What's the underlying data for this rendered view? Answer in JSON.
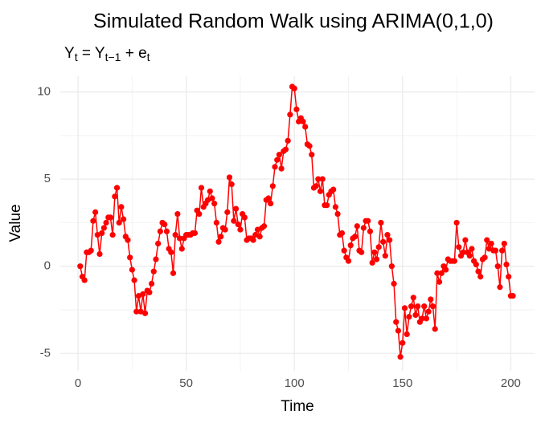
{
  "chart_data": {
    "type": "line",
    "title": "Simulated Random Walk using ARIMA(0,1,0)",
    "subtitle": [
      {
        "text": "Y",
        "sub": "t"
      },
      {
        "text": " = Y",
        "sub": "t−1"
      },
      {
        "text": " + e",
        "sub": "t"
      }
    ],
    "x_label": "Time",
    "y_label": "Value",
    "x": [
      1,
      2,
      3,
      4,
      5,
      6,
      7,
      8,
      9,
      10,
      11,
      12,
      13,
      14,
      15,
      16,
      17,
      18,
      19,
      20,
      21,
      22,
      23,
      24,
      25,
      26,
      27,
      28,
      29,
      30,
      31,
      32,
      33,
      34,
      35,
      36,
      37,
      38,
      39,
      40,
      41,
      42,
      43,
      44,
      45,
      46,
      47,
      48,
      49,
      50,
      51,
      52,
      53,
      54,
      55,
      56,
      57,
      58,
      59,
      60,
      61,
      62,
      63,
      64,
      65,
      66,
      67,
      68,
      69,
      70,
      71,
      72,
      73,
      74,
      75,
      76,
      77,
      78,
      79,
      80,
      81,
      82,
      83,
      84,
      85,
      86,
      87,
      88,
      89,
      90,
      91,
      92,
      93,
      94,
      95,
      96,
      97,
      98,
      99,
      100,
      101,
      102,
      103,
      104,
      105,
      106,
      107,
      108,
      109,
      110,
      111,
      112,
      113,
      114,
      115,
      116,
      117,
      118,
      119,
      120,
      121,
      122,
      123,
      124,
      125,
      126,
      127,
      128,
      129,
      130,
      131,
      132,
      133,
      134,
      135,
      136,
      137,
      138,
      139,
      140,
      141,
      142,
      143,
      144,
      145,
      146,
      147,
      148,
      149,
      150,
      151,
      152,
      153,
      154,
      155,
      156,
      157,
      158,
      159,
      160,
      161,
      162,
      163,
      164,
      165,
      166,
      167,
      168,
      169,
      170,
      171,
      172,
      173,
      174,
      175,
      176,
      177,
      178,
      179,
      180,
      181,
      182,
      183,
      184,
      185,
      186,
      187,
      188,
      189,
      190,
      191,
      192,
      193,
      194,
      195,
      196,
      197,
      198,
      199,
      200,
      201
    ],
    "series": [
      {
        "color": "#ff0000",
        "values": [
          0,
          -0.6,
          -0.8,
          0.8,
          0.8,
          0.9,
          2.6,
          3.1,
          1.8,
          0.7,
          1.9,
          2.2,
          2.5,
          2.8,
          2.8,
          1.8,
          4.0,
          4.5,
          2.5,
          3.4,
          2.7,
          1.7,
          1.5,
          0.5,
          -0.2,
          -0.8,
          -2.6,
          -1.7,
          -2.6,
          -1.6,
          -2.7,
          -1.4,
          -1.5,
          -1.0,
          -0.3,
          0.4,
          1.3,
          2.0,
          2.5,
          2.4,
          2.0,
          1.0,
          0.8,
          -0.4,
          1.8,
          3.0,
          1.6,
          1.0,
          1.6,
          1.8,
          1.8,
          1.8,
          1.9,
          1.9,
          3.2,
          3.0,
          4.5,
          3.4,
          3.6,
          3.8,
          4.3,
          3.9,
          3.6,
          2.5,
          1.4,
          1.7,
          2.2,
          2.1,
          3.1,
          5.1,
          4.7,
          2.6,
          3.3,
          2.4,
          2.1,
          3.0,
          2.8,
          1.5,
          1.6,
          1.6,
          1.5,
          1.8,
          2.1,
          1.7,
          2.2,
          2.3,
          3.8,
          3.9,
          3.6,
          4.6,
          5.7,
          6.1,
          6.4,
          5.6,
          6.6,
          6.7,
          7.2,
          8.7,
          10.3,
          10.2,
          9.0,
          8.3,
          8.5,
          8.3,
          8.0,
          7.0,
          6.9,
          6.4,
          4.5,
          4.6,
          5.0,
          4.3,
          5.0,
          3.5,
          3.5,
          4.1,
          4.3,
          4.4,
          3.4,
          3.0,
          1.8,
          1.9,
          0.9,
          0.5,
          0.3,
          1.2,
          1.6,
          1.7,
          2.3,
          0.9,
          0.8,
          2.2,
          2.6,
          2.6,
          2.0,
          0.2,
          0.8,
          0.4,
          1.1,
          2.5,
          1.4,
          0.6,
          1.8,
          1.5,
          0.0,
          -1.0,
          -3.2,
          -3.7,
          -5.2,
          -4.4,
          -2.4,
          -3.9,
          -2.9,
          -2.3,
          -1.8,
          -2.8,
          -2.3,
          -3.2,
          -3.0,
          -2.3,
          -3.0,
          -2.6,
          -1.9,
          -2.3,
          -3.6,
          -0.4,
          -0.9,
          -0.4,
          0.0,
          -0.2,
          0.4,
          0.3,
          0.3,
          0.3,
          2.5,
          1.1,
          0.6,
          0.8,
          1.5,
          0.8,
          0.6,
          1.0,
          0.3,
          0.1,
          -0.3,
          -0.6,
          0.4,
          0.5,
          1.5,
          1.0,
          1.3,
          0.9,
          0.9,
          0.0,
          -1.2,
          0.9,
          1.3,
          0.1,
          -0.6,
          -1.7,
          -1.7
        ]
      }
    ],
    "xlim": [
      -8.2,
      211
    ],
    "ylim": [
      -6.0,
      10.9
    ],
    "xticks": [
      0,
      50,
      100,
      150,
      200
    ],
    "yticks": [
      -5,
      0,
      5,
      10
    ],
    "grid": true
  }
}
